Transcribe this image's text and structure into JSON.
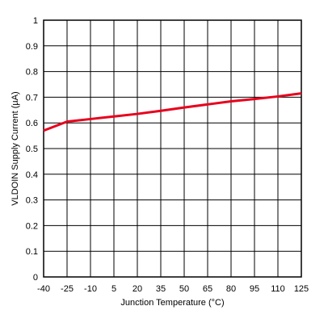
{
  "chart_data": {
    "type": "line",
    "title": "",
    "xlabel": "Junction Temperature (°C)",
    "ylabel": "VLDOIN Supply Current (µA)",
    "xlim": [
      -40,
      125
    ],
    "ylim": [
      0,
      1
    ],
    "xticks": [
      -40,
      -25,
      -10,
      5,
      20,
      35,
      50,
      65,
      80,
      95,
      110,
      125
    ],
    "yticks": [
      0,
      0.1,
      0.2,
      0.3,
      0.4,
      0.5,
      0.6,
      0.7,
      0.8,
      0.9,
      1
    ],
    "grid": true,
    "legend": "none",
    "series": [
      {
        "color": "#e8001c",
        "x": [
          -40,
          -25,
          -10,
          5,
          20,
          35,
          50,
          65,
          80,
          95,
          110,
          125
        ],
        "y": [
          0.57,
          0.605,
          0.615,
          0.625,
          0.635,
          0.647,
          0.66,
          0.672,
          0.684,
          0.693,
          0.703,
          0.715
        ]
      }
    ]
  }
}
